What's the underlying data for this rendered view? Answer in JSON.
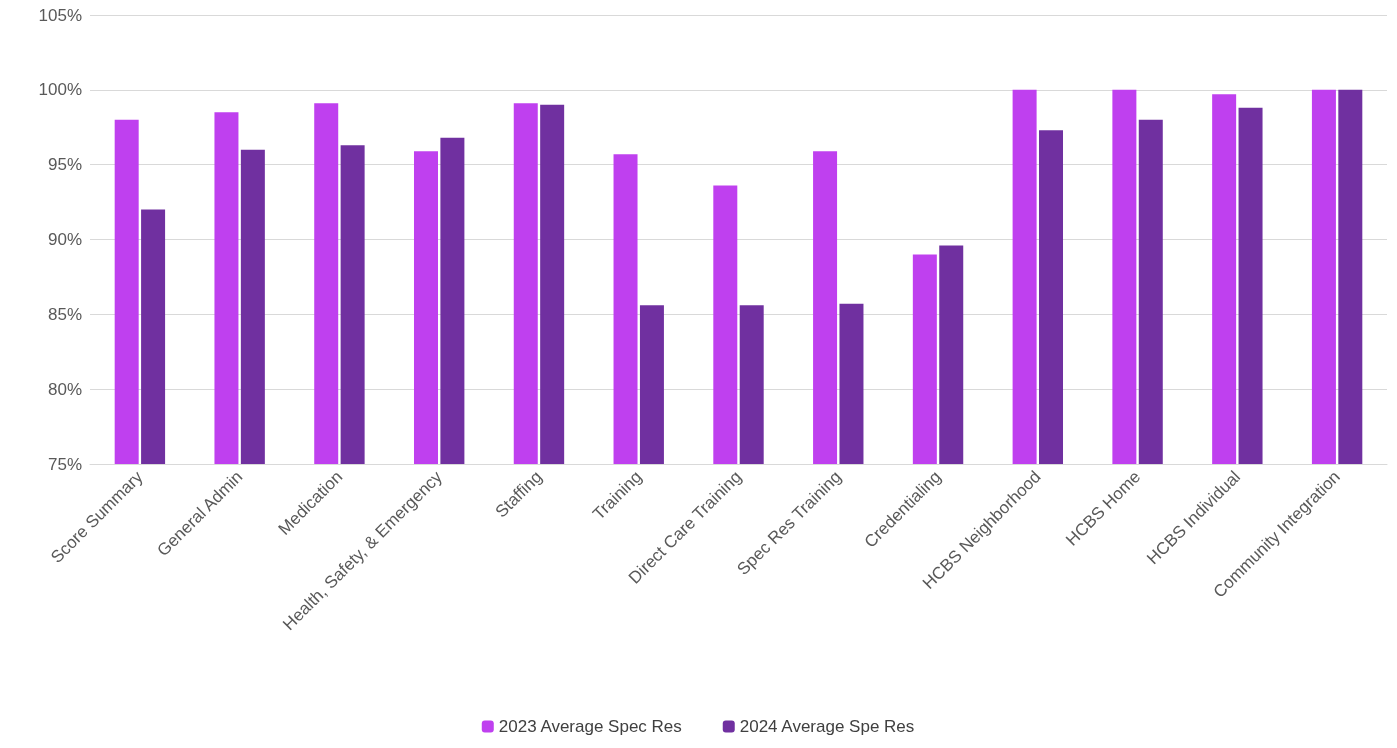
{
  "chart_data": {
    "type": "bar",
    "categories": [
      "Score Summary",
      "General Admin",
      "Medication",
      "Health, Safety, & Emergency",
      "Staffing",
      "Training",
      "Direct Care Training",
      "Spec Res Training",
      "Credentialing",
      "HCBS Neighborhood",
      "HCBS Home",
      "HCBS Individual",
      "Community Integration"
    ],
    "series": [
      {
        "name": "2023 Average Spec Res",
        "color": "#bf40ef",
        "values": [
          98.0,
          98.5,
          99.1,
          95.9,
          99.1,
          95.7,
          93.6,
          95.9,
          89.0,
          100,
          100,
          99.7,
          100
        ]
      },
      {
        "name": "2024 Average Spe Res",
        "color": "#7030a0",
        "values": [
          92.0,
          96.0,
          96.3,
          96.8,
          99.0,
          85.6,
          85.6,
          85.7,
          89.6,
          97.3,
          98.0,
          98.8,
          100
        ]
      }
    ],
    "ylim": [
      75,
      105
    ],
    "yticks": [
      {
        "value": 75,
        "label": "75%"
      },
      {
        "value": 80,
        "label": "80%"
      },
      {
        "value": 85,
        "label": "85%"
      },
      {
        "value": 90,
        "label": "90%"
      },
      {
        "value": 95,
        "label": "95%"
      },
      {
        "value": 100,
        "label": "100%"
      },
      {
        "value": 105,
        "label": "105%"
      }
    ],
    "grid": "y",
    "legend": "bottom"
  }
}
